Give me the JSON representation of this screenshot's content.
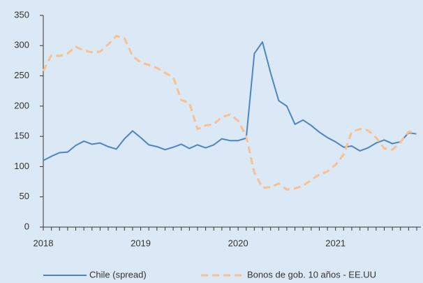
{
  "chart_data": {
    "type": "line",
    "categories": [
      "2018",
      null,
      null,
      null,
      null,
      null,
      null,
      null,
      null,
      null,
      null,
      null,
      "2019",
      null,
      null,
      null,
      null,
      null,
      null,
      null,
      null,
      null,
      null,
      null,
      "2020",
      null,
      null,
      null,
      null,
      null,
      null,
      null,
      null,
      null,
      null,
      null,
      "2021",
      null,
      null,
      null,
      null,
      null,
      null,
      null,
      null,
      null,
      null
    ],
    "series": [
      {
        "name": "Chile (spread)",
        "color": "#4a86c5",
        "dash": false,
        "values": [
          110,
          117,
          123,
          124,
          135,
          142,
          137,
          139,
          133,
          129,
          146,
          159,
          148,
          136,
          133,
          128,
          132,
          137,
          130,
          136,
          131,
          136,
          146,
          143,
          143,
          147,
          287,
          306,
          255,
          209,
          200,
          170,
          177,
          168,
          157,
          148,
          141,
          132,
          134,
          126,
          131,
          139,
          144,
          138,
          141,
          156,
          154
        ]
      },
      {
        "name": "Bonos de gob. 10 años - EE.UU",
        "color": "#fac090",
        "dash": true,
        "values": [
          258,
          284,
          283,
          287,
          298,
          292,
          289,
          290,
          302,
          316,
          312,
          283,
          272,
          268,
          263,
          255,
          248,
          210,
          205,
          162,
          168,
          170,
          182,
          186,
          176,
          150,
          90,
          65,
          66,
          72,
          62,
          64,
          68,
          78,
          87,
          92,
          103,
          120,
          158,
          162,
          160,
          148,
          130,
          128,
          140,
          158,
          155
        ]
      }
    ],
    "ylim": [
      0,
      350
    ],
    "yticks": [
      0,
      50,
      100,
      150,
      200,
      250,
      300,
      350
    ],
    "legend": "bottom"
  }
}
